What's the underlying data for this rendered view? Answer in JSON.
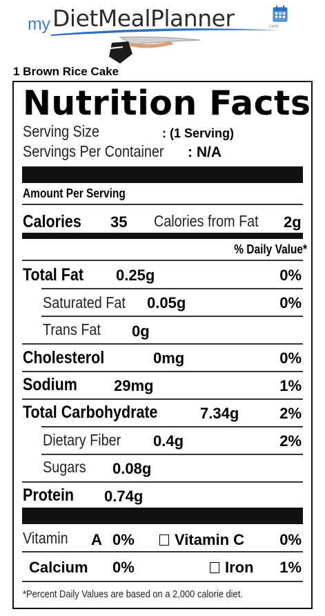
{
  "brand": {
    "prefix": "my",
    "name": "DietMealPlanner",
    "suffix": ".com",
    "colors": {
      "accent": "#3f7fc6",
      "swoosh": "#2f6fbf",
      "text": "#2b2b2b"
    }
  },
  "food": {
    "title": "1 Brown Rice Cake"
  },
  "label": {
    "heading": "Nutrition Facts",
    "serving_size_label": "Serving Size",
    "serving_size_value": ": (1 Serving)",
    "servings_per_container_label": "Servings Per Container",
    "servings_per_container_value": ": N/A",
    "amount_per_serving": "Amount Per Serving",
    "calories_label": "Calories",
    "calories_value": "35",
    "calories_fat_label": "Calories from Fat",
    "calories_fat_value": "2g",
    "daily_value_header": "% Daily Value*",
    "nutrients": {
      "total_fat": {
        "label": "Total Fat",
        "amount": "0.25g",
        "dv": "0%"
      },
      "saturated_fat": {
        "label": "Saturated Fat",
        "amount": "0.05g",
        "dv": "0%"
      },
      "trans_fat": {
        "label": "Trans Fat",
        "amount": "0g"
      },
      "cholesterol": {
        "label": "Cholesterol",
        "amount": "0mg",
        "dv": "0%"
      },
      "sodium": {
        "label": "Sodium",
        "amount": "29mg",
        "dv": "1%"
      },
      "total_carbohydrate": {
        "label": "Total Carbohydrate",
        "amount": "7.34g",
        "dv": "2%"
      },
      "dietary_fiber": {
        "label": "Dietary Fiber",
        "amount": "0.4g",
        "dv": "2%"
      },
      "sugars": {
        "label": "Sugars",
        "amount": "0.08g"
      },
      "protein": {
        "label": "Protein",
        "amount": "0.74g"
      }
    },
    "vitamins": {
      "vitamin_word": "Vitamin",
      "vitamin_a_letter": "A",
      "vitamin_a_dv": "0%",
      "vitamin_c_label": "Vitamin C",
      "vitamin_c_dv": "0%",
      "calcium_label": "Calcium",
      "calcium_dv": "0%",
      "iron_label": "Iron",
      "iron_dv": "1%"
    },
    "footnote": "*Percent Daily Values are based on a 2,000 calorie diet."
  }
}
